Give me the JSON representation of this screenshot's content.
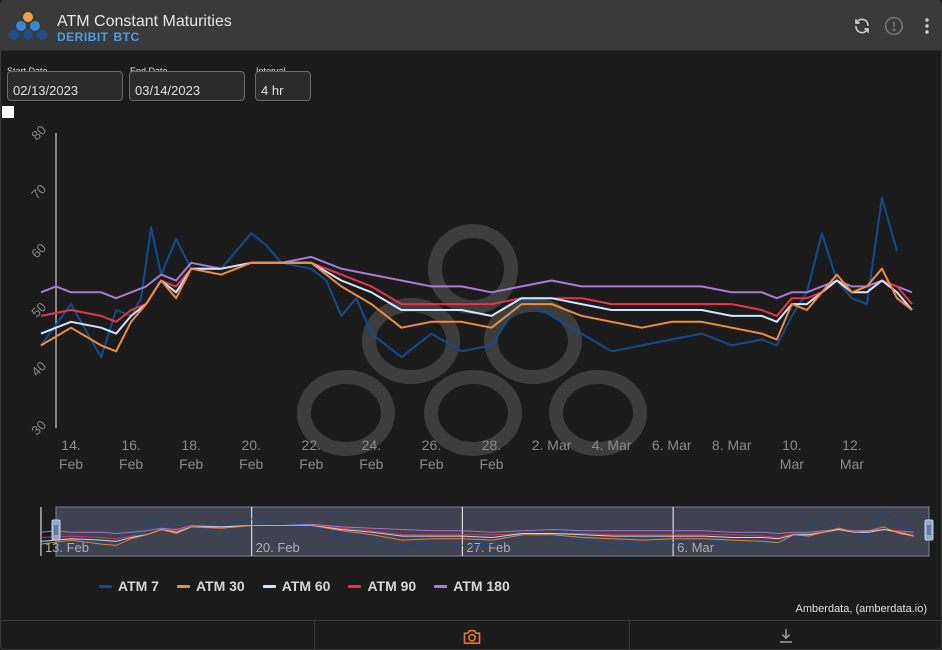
{
  "header": {
    "title": "ATM Constant Maturities",
    "exchange": "DERIBIT",
    "asset": "BTC",
    "refresh_icon": "refresh-icon",
    "info_icon": "info-icon",
    "menu_icon": "more-vert-icon"
  },
  "controls": {
    "start_label": "Start Date",
    "start_value": "02/13/2023",
    "end_label": "End Date",
    "end_value": "03/14/2023",
    "interval_label": "Interval",
    "interval_value": "4 hr"
  },
  "credit": "Amberdata, (amberdata.io)",
  "footer": {
    "camera_icon": "camera-icon",
    "download_icon": "download-icon"
  },
  "colors": {
    "accent": "#4a9fe8",
    "camera": "#e8722a"
  },
  "chart_data": {
    "type": "line",
    "ylim": [
      30,
      80
    ],
    "yticks": [
      30,
      40,
      50,
      60,
      70,
      80
    ],
    "x_domain": [
      "2023-02-13",
      "2023-03-14"
    ],
    "xticks": [
      {
        "x": "2023-02-14",
        "l1": "14.",
        "l2": "Feb"
      },
      {
        "x": "2023-02-16",
        "l1": "16.",
        "l2": "Feb"
      },
      {
        "x": "2023-02-18",
        "l1": "18.",
        "l2": "Feb"
      },
      {
        "x": "2023-02-20",
        "l1": "20.",
        "l2": "Feb"
      },
      {
        "x": "2023-02-22",
        "l1": "22.",
        "l2": "Feb"
      },
      {
        "x": "2023-02-24",
        "l1": "24.",
        "l2": "Feb"
      },
      {
        "x": "2023-02-26",
        "l1": "26.",
        "l2": "Feb"
      },
      {
        "x": "2023-02-28",
        "l1": "28.",
        "l2": "Feb"
      },
      {
        "x": "2023-03-02",
        "l1": "2. Mar",
        "l2": ""
      },
      {
        "x": "2023-03-04",
        "l1": "4. Mar",
        "l2": ""
      },
      {
        "x": "2023-03-06",
        "l1": "6. Mar",
        "l2": ""
      },
      {
        "x": "2023-03-08",
        "l1": "8. Mar",
        "l2": ""
      },
      {
        "x": "2023-03-10",
        "l1": "10.",
        "l2": "Mar"
      },
      {
        "x": "2023-03-12",
        "l1": "12.",
        "l2": "Mar"
      }
    ],
    "navigator_labels": [
      {
        "x": "2023-02-13",
        "label": "13. Feb"
      },
      {
        "x": "2023-02-20",
        "label": "20. Feb"
      },
      {
        "x": "2023-02-27",
        "label": "27. Feb"
      },
      {
        "x": "2023-03-06",
        "label": "6. Mar"
      }
    ],
    "series": [
      {
        "name": "ATM 7",
        "color": "#0e4d8f",
        "points": [
          [
            "2023-02-13",
            44
          ],
          [
            "2023-02-14",
            51
          ],
          [
            "2023-02-15",
            42
          ],
          [
            "2023-02-15 12:00",
            50
          ],
          [
            "2023-02-16",
            49
          ],
          [
            "2023-02-16 08:00",
            52
          ],
          [
            "2023-02-16 16:00",
            64
          ],
          [
            "2023-02-17",
            56
          ],
          [
            "2023-02-17 12:00",
            62
          ],
          [
            "2023-02-18",
            57
          ],
          [
            "2023-02-19",
            57
          ],
          [
            "2023-02-20",
            63
          ],
          [
            "2023-02-20 12:00",
            61
          ],
          [
            "2023-02-21",
            58
          ],
          [
            "2023-02-22",
            57
          ],
          [
            "2023-02-22 12:00",
            55
          ],
          [
            "2023-02-23",
            49
          ],
          [
            "2023-02-23 12:00",
            52
          ],
          [
            "2023-02-24",
            46
          ],
          [
            "2023-02-25",
            42
          ],
          [
            "2023-02-26",
            46
          ],
          [
            "2023-02-27",
            43
          ],
          [
            "2023-02-28",
            44
          ],
          [
            "2023-03-01",
            52
          ],
          [
            "2023-03-02",
            49
          ],
          [
            "2023-03-03",
            46
          ],
          [
            "2023-03-04",
            43
          ],
          [
            "2023-03-05",
            44
          ],
          [
            "2023-03-06",
            45
          ],
          [
            "2023-03-07",
            46
          ],
          [
            "2023-03-08",
            44
          ],
          [
            "2023-03-09",
            45
          ],
          [
            "2023-03-09 12:00",
            44
          ],
          [
            "2023-03-10",
            49
          ],
          [
            "2023-03-10 12:00",
            53
          ],
          [
            "2023-03-11",
            63
          ],
          [
            "2023-03-11 12:00",
            55
          ],
          [
            "2023-03-12",
            52
          ],
          [
            "2023-03-12 12:00",
            51
          ],
          [
            "2023-03-13",
            69
          ],
          [
            "2023-03-13 12:00",
            60
          ]
        ]
      },
      {
        "name": "ATM 30",
        "color": "#f28c38",
        "points": [
          [
            "2023-02-13",
            44
          ],
          [
            "2023-02-14",
            47
          ],
          [
            "2023-02-15",
            44
          ],
          [
            "2023-02-15 12:00",
            43
          ],
          [
            "2023-02-16",
            48
          ],
          [
            "2023-02-16 12:00",
            51
          ],
          [
            "2023-02-17",
            55
          ],
          [
            "2023-02-17 12:00",
            52
          ],
          [
            "2023-02-18",
            57
          ],
          [
            "2023-02-19",
            56
          ],
          [
            "2023-02-20",
            58
          ],
          [
            "2023-02-21",
            58
          ],
          [
            "2023-02-22",
            58
          ],
          [
            "2023-02-23",
            54
          ],
          [
            "2023-02-24",
            51
          ],
          [
            "2023-02-25",
            47
          ],
          [
            "2023-02-26",
            48
          ],
          [
            "2023-02-27",
            48
          ],
          [
            "2023-02-28",
            47
          ],
          [
            "2023-03-01",
            51
          ],
          [
            "2023-03-02",
            51
          ],
          [
            "2023-03-03",
            49
          ],
          [
            "2023-03-04",
            48
          ],
          [
            "2023-03-05",
            47
          ],
          [
            "2023-03-06",
            48
          ],
          [
            "2023-03-07",
            48
          ],
          [
            "2023-03-08",
            47
          ],
          [
            "2023-03-09",
            46
          ],
          [
            "2023-03-09 12:00",
            45
          ],
          [
            "2023-03-10",
            51
          ],
          [
            "2023-03-10 12:00",
            50
          ],
          [
            "2023-03-11",
            53
          ],
          [
            "2023-03-11 12:00",
            56
          ],
          [
            "2023-03-12",
            53
          ],
          [
            "2023-03-12 12:00",
            54
          ],
          [
            "2023-03-13",
            57
          ],
          [
            "2023-03-13 12:00",
            52
          ],
          [
            "2023-03-14",
            50
          ]
        ]
      },
      {
        "name": "ATM 60",
        "color": "#cfe6ff",
        "points": [
          [
            "2023-02-13",
            46
          ],
          [
            "2023-02-14",
            48
          ],
          [
            "2023-02-15",
            47
          ],
          [
            "2023-02-15 12:00",
            46
          ],
          [
            "2023-02-16",
            49
          ],
          [
            "2023-02-16 12:00",
            51
          ],
          [
            "2023-02-17",
            55
          ],
          [
            "2023-02-17 12:00",
            53
          ],
          [
            "2023-02-18",
            57
          ],
          [
            "2023-02-19",
            57
          ],
          [
            "2023-02-20",
            58
          ],
          [
            "2023-02-21",
            58
          ],
          [
            "2023-02-22",
            58
          ],
          [
            "2023-02-23",
            55
          ],
          [
            "2023-02-24",
            53
          ],
          [
            "2023-02-25",
            50
          ],
          [
            "2023-02-26",
            50
          ],
          [
            "2023-02-27",
            50
          ],
          [
            "2023-02-28",
            49
          ],
          [
            "2023-03-01",
            52
          ],
          [
            "2023-03-02",
            52
          ],
          [
            "2023-03-03",
            51
          ],
          [
            "2023-03-04",
            50
          ],
          [
            "2023-03-05",
            50
          ],
          [
            "2023-03-06",
            50
          ],
          [
            "2023-03-07",
            50
          ],
          [
            "2023-03-08",
            49
          ],
          [
            "2023-03-09",
            49
          ],
          [
            "2023-03-09 12:00",
            48
          ],
          [
            "2023-03-10",
            51
          ],
          [
            "2023-03-10 12:00",
            51
          ],
          [
            "2023-03-11",
            53
          ],
          [
            "2023-03-11 12:00",
            55
          ],
          [
            "2023-03-12",
            53
          ],
          [
            "2023-03-12 12:00",
            53
          ],
          [
            "2023-03-13",
            55
          ],
          [
            "2023-03-13 12:00",
            53
          ],
          [
            "2023-03-14",
            50
          ]
        ]
      },
      {
        "name": "ATM 90",
        "color": "#e8334a",
        "points": [
          [
            "2023-02-13",
            49
          ],
          [
            "2023-02-14",
            50
          ],
          [
            "2023-02-15",
            49
          ],
          [
            "2023-02-15 12:00",
            48
          ],
          [
            "2023-02-16",
            50
          ],
          [
            "2023-02-16 12:00",
            51
          ],
          [
            "2023-02-17",
            55
          ],
          [
            "2023-02-17 12:00",
            54
          ],
          [
            "2023-02-18",
            57
          ],
          [
            "2023-02-19",
            57
          ],
          [
            "2023-02-20",
            58
          ],
          [
            "2023-02-21",
            58
          ],
          [
            "2023-02-22",
            58
          ],
          [
            "2023-02-23",
            56
          ],
          [
            "2023-02-24",
            54
          ],
          [
            "2023-02-25",
            51
          ],
          [
            "2023-02-26",
            51
          ],
          [
            "2023-02-27",
            51
          ],
          [
            "2023-02-28",
            51
          ],
          [
            "2023-03-01",
            52
          ],
          [
            "2023-03-02",
            52
          ],
          [
            "2023-03-03",
            52
          ],
          [
            "2023-03-04",
            51
          ],
          [
            "2023-03-05",
            51
          ],
          [
            "2023-03-06",
            51
          ],
          [
            "2023-03-07",
            51
          ],
          [
            "2023-03-08",
            51
          ],
          [
            "2023-03-09",
            50
          ],
          [
            "2023-03-09 12:00",
            49
          ],
          [
            "2023-03-10",
            52
          ],
          [
            "2023-03-10 12:00",
            52
          ],
          [
            "2023-03-11",
            53
          ],
          [
            "2023-03-11 12:00",
            55
          ],
          [
            "2023-03-12",
            53
          ],
          [
            "2023-03-12 12:00",
            53
          ],
          [
            "2023-03-13",
            55
          ],
          [
            "2023-03-13 12:00",
            54
          ],
          [
            "2023-03-14",
            51
          ]
        ]
      },
      {
        "name": "ATM 180",
        "color": "#a77bd8",
        "points": [
          [
            "2023-02-13",
            53
          ],
          [
            "2023-02-13 12:00",
            54
          ],
          [
            "2023-02-14",
            53
          ],
          [
            "2023-02-15",
            53
          ],
          [
            "2023-02-15 12:00",
            52
          ],
          [
            "2023-02-16",
            53
          ],
          [
            "2023-02-16 12:00",
            54
          ],
          [
            "2023-02-17",
            56
          ],
          [
            "2023-02-17 12:00",
            55
          ],
          [
            "2023-02-18",
            58
          ],
          [
            "2023-02-19",
            57
          ],
          [
            "2023-02-20",
            58
          ],
          [
            "2023-02-21",
            58
          ],
          [
            "2023-02-22",
            59
          ],
          [
            "2023-02-23",
            57
          ],
          [
            "2023-02-24",
            56
          ],
          [
            "2023-02-25",
            55
          ],
          [
            "2023-02-26",
            54
          ],
          [
            "2023-02-27",
            54
          ],
          [
            "2023-02-28",
            53
          ],
          [
            "2023-03-01",
            54
          ],
          [
            "2023-03-02",
            55
          ],
          [
            "2023-03-03",
            54
          ],
          [
            "2023-03-04",
            54
          ],
          [
            "2023-03-05",
            54
          ],
          [
            "2023-03-06",
            54
          ],
          [
            "2023-03-07",
            54
          ],
          [
            "2023-03-08",
            53
          ],
          [
            "2023-03-09",
            53
          ],
          [
            "2023-03-09 12:00",
            52
          ],
          [
            "2023-03-10",
            53
          ],
          [
            "2023-03-10 12:00",
            53
          ],
          [
            "2023-03-11",
            54
          ],
          [
            "2023-03-11 12:00",
            55
          ],
          [
            "2023-03-12",
            54
          ],
          [
            "2023-03-12 12:00",
            54
          ],
          [
            "2023-03-13",
            55
          ],
          [
            "2023-03-13 12:00",
            54
          ],
          [
            "2023-03-14",
            53
          ]
        ]
      }
    ]
  }
}
